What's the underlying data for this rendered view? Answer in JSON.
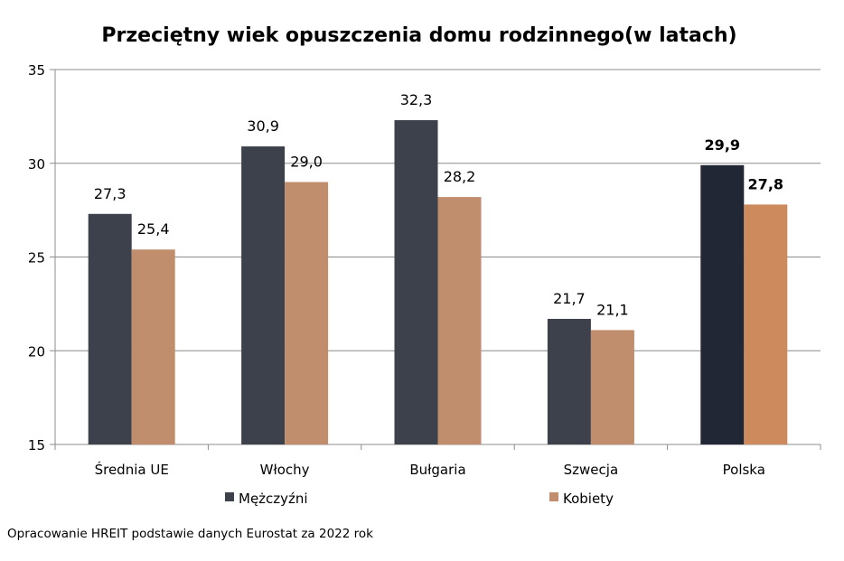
{
  "chart_data": {
    "type": "bar",
    "title": "Przeciętny wiek opuszczenia domu rodzinnego(w latach)",
    "categories": [
      "Średnia UE",
      "Włochy",
      "Bułgaria",
      "Szwecja",
      "Polska"
    ],
    "series": [
      {
        "name": "Mężczyźni",
        "values": [
          27.3,
          30.9,
          32.3,
          21.7,
          29.9
        ],
        "labels": [
          "27,3",
          "30,9",
          "32,3",
          "21,7",
          "29,9"
        ]
      },
      {
        "name": "Kobiety",
        "values": [
          25.4,
          29.0,
          28.2,
          21.1,
          27.8
        ],
        "labels": [
          "25,4",
          "29,0",
          "28,2",
          "21,1",
          "27,8"
        ]
      }
    ],
    "highlight_category": "Polska",
    "ylim": [
      15,
      35
    ],
    "yticks": [
      "15",
      "20",
      "25",
      "30",
      "35"
    ],
    "grid": true,
    "legend": "bottom",
    "colors": {
      "men": "#3d414c",
      "women": "#c08e6c",
      "men_highlight": "#212735",
      "women_highlight": "#cd8a5c",
      "grid": "#8c8c8c"
    }
  },
  "source_note": "Opracowanie HREIT podstawie danych Eurostat za 2022 rok"
}
